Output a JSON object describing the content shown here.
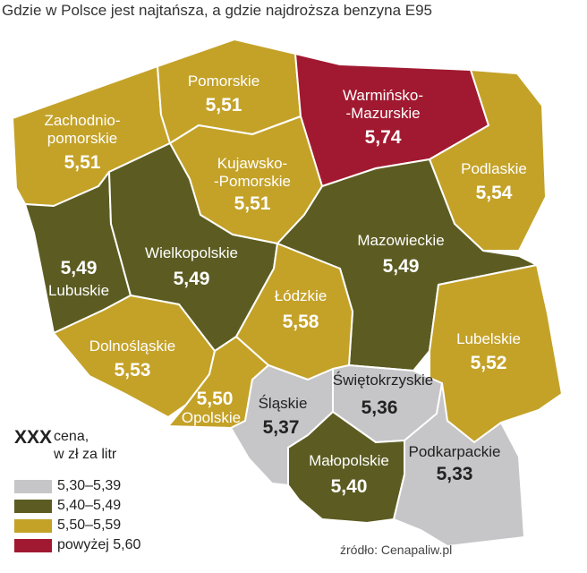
{
  "title": "Gdzie w Polsce jest najtańsza, a gdzie najdroższa benzyna E95",
  "source": "źródło: Cenapaliw.pl",
  "legend": {
    "marker": "XXX",
    "caption_line1": "cena,",
    "caption_line2": "w zł za litr",
    "items": [
      {
        "label": "5,30–5,39",
        "color": "#c6c6c8"
      },
      {
        "label": "5,40–5,49",
        "color": "#5c5c22"
      },
      {
        "label": "5,50–5,59",
        "color": "#c4a228"
      },
      {
        "label": "powyżej 5,60",
        "color": "#a11930"
      }
    ]
  },
  "regions": {
    "zachodniopomorskie": {
      "name1": "Zachodnio-",
      "name2": "pomorskie",
      "value": "5,51",
      "color": "#c4a228"
    },
    "pomorskie": {
      "name": "Pomorskie",
      "value": "5,51",
      "color": "#c4a228"
    },
    "warminsko_mazurskie": {
      "name1": "Warmińsko-",
      "name2": "-Mazurskie",
      "value": "5,74",
      "color": "#a11930"
    },
    "podlaskie": {
      "name": "Podlaskie",
      "value": "5,54",
      "color": "#c4a228"
    },
    "kujawsko_pomorskie": {
      "name1": "Kujawsko-",
      "name2": "-Pomorskie",
      "value": "5,51",
      "color": "#c4a228"
    },
    "lubuskie": {
      "name": "Lubuskie",
      "value": "5,49",
      "color": "#5c5c22"
    },
    "wielkopolskie": {
      "name": "Wielkopolskie",
      "value": "5,49",
      "color": "#5c5c22"
    },
    "mazowieckie": {
      "name": "Mazowieckie",
      "value": "5,49",
      "color": "#5c5c22"
    },
    "lodzkie": {
      "name": "Łódzkie",
      "value": "5,58",
      "color": "#c4a228"
    },
    "lubelskie": {
      "name": "Lubelskie",
      "value": "5,52",
      "color": "#c4a228"
    },
    "dolnoslaskie": {
      "name": "Dolnośląskie",
      "value": "5,53",
      "color": "#c4a228"
    },
    "opolskie": {
      "name": "Opolskie",
      "value": "5,50",
      "color": "#c4a228"
    },
    "slaskie": {
      "name": "Śląskie",
      "value": "5,37",
      "color": "#c6c6c8"
    },
    "swietokrzyskie": {
      "name": "Świętokrzyskie",
      "value": "5,36",
      "color": "#c6c6c8"
    },
    "malopolskie": {
      "name": "Małopolskie",
      "value": "5,40",
      "color": "#5c5c22"
    },
    "podkarpackie": {
      "name": "Podkarpackie",
      "value": "5,33",
      "color": "#c6c6c8"
    }
  }
}
